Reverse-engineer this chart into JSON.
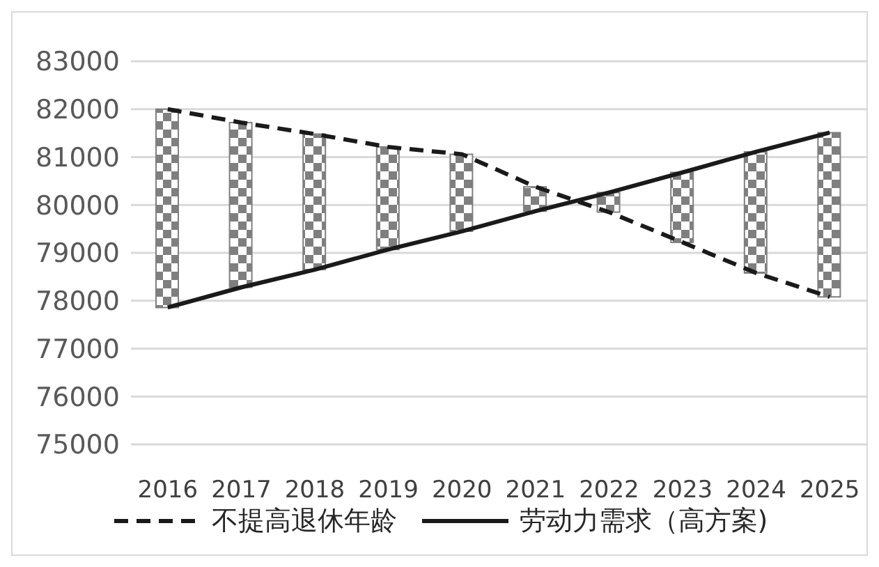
{
  "chart_data": {
    "type": "bar",
    "categories": [
      "2016",
      "2017",
      "2018",
      "2019",
      "2020",
      "2021",
      "2022",
      "2023",
      "2024",
      "2025"
    ],
    "series": [
      {
        "color": "#7f7f7f",
        "base": [
          77860,
          78280,
          78650,
          79070,
          79450,
          79870,
          79850,
          79220,
          78580,
          78080
        ],
        "values": [
          4140,
          3440,
          2830,
          2140,
          1610,
          510,
          410,
          1460,
          2530,
          3430
        ]
      },
      {
        "type": "line",
        "name": "不提高退休年龄",
        "color": "#1a1a1a",
        "line_style": "dashed",
        "values": [
          82000,
          81720,
          81480,
          81210,
          81060,
          80380,
          79850,
          79220,
          78580,
          78080
        ]
      },
      {
        "type": "line",
        "name": "劳动力需求（高方案)",
        "color": "#1a1a1a",
        "line_style": "solid",
        "values": [
          77860,
          78280,
          78650,
          79070,
          79450,
          79870,
          80260,
          80680,
          81110,
          81510
        ]
      }
    ],
    "ylim": [
      75000,
      83000
    ],
    "yticks": [
      75000,
      76000,
      77000,
      78000,
      79000,
      80000,
      81000,
      82000,
      83000
    ],
    "grid": "y",
    "legend": "bottom",
    "marker": "none"
  }
}
